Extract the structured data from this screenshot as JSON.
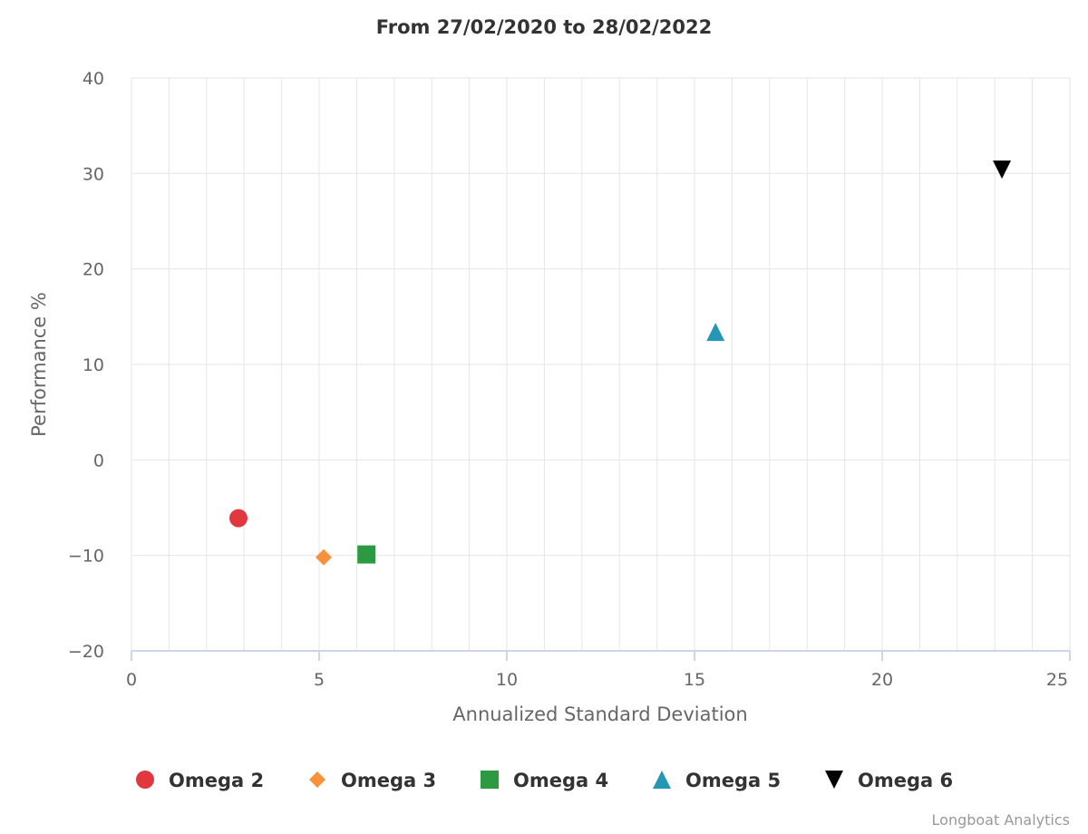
{
  "chart_data": {
    "type": "scatter",
    "title": "From 27/02/2020 to 28/02/2022",
    "xlabel": "Annualized Standard Deviation",
    "ylabel": "Performance %",
    "xlim": [
      0,
      25
    ],
    "ylim": [
      -20,
      40
    ],
    "x_ticks": [
      0,
      5,
      10,
      15,
      20,
      25
    ],
    "y_ticks": [
      -20,
      -10,
      0,
      10,
      20,
      30,
      40
    ],
    "x_minor_grid_step": 1,
    "grid": true,
    "legend_position": "bottom",
    "series": [
      {
        "name": "Omega 2",
        "marker": "circle",
        "color": "#e0383e",
        "x": 2.85,
        "y": -6.1
      },
      {
        "name": "Omega 3",
        "marker": "diamond",
        "color": "#f7923a",
        "x": 5.12,
        "y": -10.2
      },
      {
        "name": "Omega 4",
        "marker": "square",
        "color": "#2c9a40",
        "x": 6.26,
        "y": -9.9
      },
      {
        "name": "Omega 5",
        "marker": "triangle",
        "color": "#2596b4",
        "x": 15.56,
        "y": 13.4
      },
      {
        "name": "Omega 6",
        "marker": "triangle-down",
        "color": "#000000",
        "x": 23.19,
        "y": 30.4
      }
    ],
    "credit": "Longboat Analytics"
  }
}
